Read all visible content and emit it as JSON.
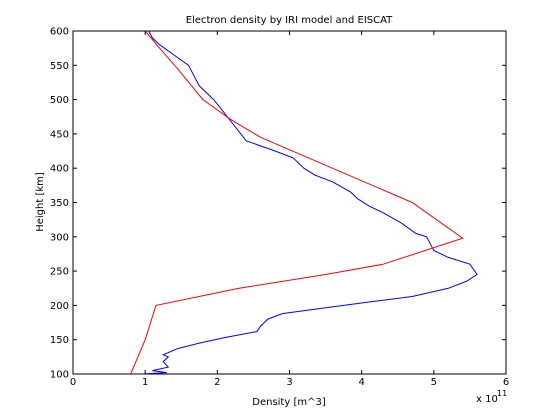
{
  "chart_data": {
    "type": "line",
    "title": "Electron density by IRI model and EISCAT",
    "xlabel": "Density [m^3]",
    "ylabel": "Height [km]",
    "x_multiplier": "x 10",
    "x_multiplier_exp": "11",
    "xlim": [
      0,
      6
    ],
    "ylim": [
      100,
      600
    ],
    "xticks": [
      "0",
      "1",
      "2",
      "3",
      "4",
      "5",
      "6"
    ],
    "yticks": [
      "100",
      "150",
      "200",
      "250",
      "300",
      "350",
      "400",
      "450",
      "500",
      "550",
      "600"
    ],
    "grid": false,
    "legend": "none",
    "series": [
      {
        "color": "#0000ff",
        "points": [
          [
            1.05,
            600
          ],
          [
            1.1,
            590
          ],
          [
            1.2,
            580
          ],
          [
            1.4,
            565
          ],
          [
            1.6,
            550
          ],
          [
            1.75,
            520
          ],
          [
            1.95,
            500
          ],
          [
            2.1,
            480
          ],
          [
            2.25,
            460
          ],
          [
            2.4,
            440
          ],
          [
            2.8,
            425
          ],
          [
            3.05,
            415
          ],
          [
            3.2,
            400
          ],
          [
            3.35,
            390
          ],
          [
            3.6,
            380
          ],
          [
            3.85,
            365
          ],
          [
            3.95,
            355
          ],
          [
            4.1,
            345
          ],
          [
            4.3,
            335
          ],
          [
            4.55,
            320
          ],
          [
            4.75,
            305
          ],
          [
            4.9,
            300
          ],
          [
            4.95,
            290
          ],
          [
            5.0,
            280
          ],
          [
            5.2,
            270
          ],
          [
            5.5,
            260
          ],
          [
            5.6,
            245
          ],
          [
            5.45,
            235
          ],
          [
            5.2,
            225
          ],
          [
            4.7,
            213
          ],
          [
            4.1,
            205
          ],
          [
            3.4,
            195
          ],
          [
            2.9,
            188
          ],
          [
            2.7,
            180
          ],
          [
            2.6,
            170
          ],
          [
            2.55,
            162
          ],
          [
            2.1,
            153
          ],
          [
            1.75,
            145
          ],
          [
            1.45,
            137
          ],
          [
            1.25,
            128
          ],
          [
            1.32,
            125
          ],
          [
            1.25,
            118
          ],
          [
            1.32,
            110
          ],
          [
            1.1,
            105
          ],
          [
            1.3,
            102
          ],
          [
            0.95,
            100
          ]
        ]
      },
      {
        "color": "#ff0000",
        "points": [
          [
            1.0,
            600
          ],
          [
            1.2,
            575
          ],
          [
            1.45,
            545
          ],
          [
            1.8,
            500
          ],
          [
            2.2,
            470
          ],
          [
            2.6,
            445
          ],
          [
            4.7,
            350
          ],
          [
            5.4,
            298
          ],
          [
            4.3,
            260
          ],
          [
            3.5,
            245
          ],
          [
            2.3,
            225
          ],
          [
            1.15,
            200
          ],
          [
            1.0,
            150
          ],
          [
            0.8,
            100
          ]
        ]
      }
    ]
  }
}
